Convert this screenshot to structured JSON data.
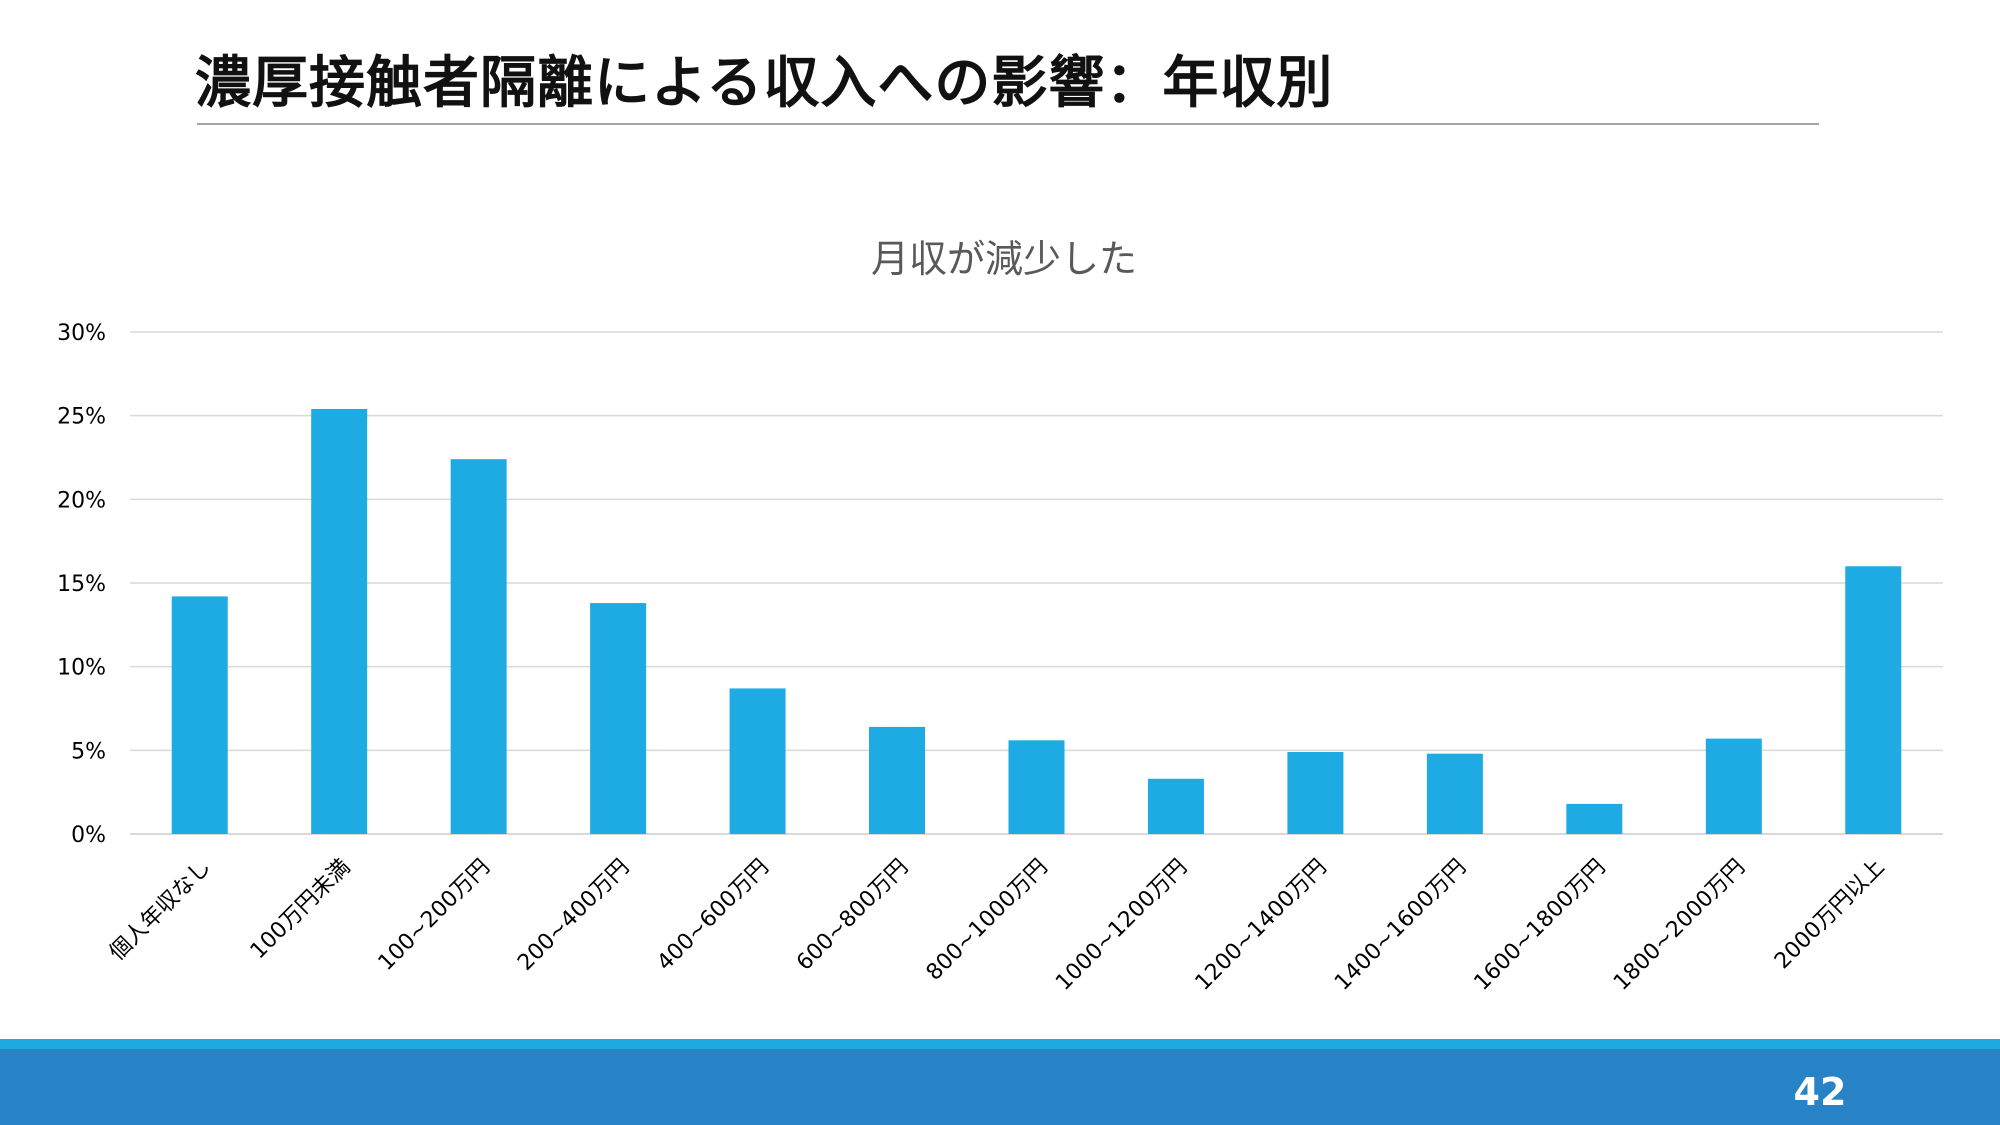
{
  "slide": {
    "title": "濃厚接触者隔離による収入への影響：年収別",
    "page_number": "42"
  },
  "colors": {
    "bar": "#1eabe3",
    "footer_strip": "#1ea9e1",
    "footer_bar": "#2783c6",
    "gridline": "#d9d9d9"
  },
  "chart_data": {
    "type": "bar",
    "title": "月収が減少した",
    "xlabel": "",
    "ylabel": "",
    "categories": [
      "個人年収なし",
      "100万円未満",
      "100~200万円",
      "200~400万円",
      "400~600万円",
      "600~800万円",
      "800~1000万円",
      "1000~1200万円",
      "1200~1400万円",
      "1400~1600万円",
      "1600~1800万円",
      "1800~2000万円",
      "2000万円以上"
    ],
    "values": [
      14.2,
      25.4,
      22.4,
      13.8,
      8.7,
      6.4,
      5.6,
      3.3,
      4.9,
      4.8,
      1.8,
      5.7,
      16.0
    ],
    "value_unit": "%",
    "ylim": [
      0,
      30
    ],
    "yticks": [
      0,
      5,
      10,
      15,
      20,
      25,
      30
    ],
    "ytick_labels": [
      "0%",
      "5%",
      "10%",
      "15%",
      "20%",
      "25%",
      "30%"
    ],
    "grid": true,
    "legend": "none"
  }
}
